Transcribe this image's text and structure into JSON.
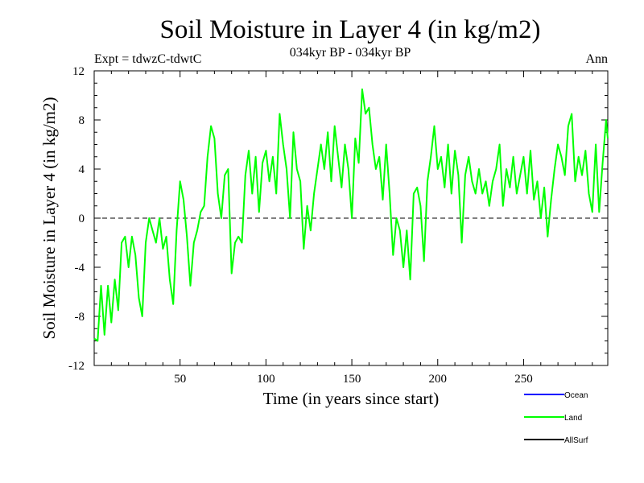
{
  "chart_data": {
    "type": "line",
    "title": "Soil Moisture in Layer 4 (in kg/m2)",
    "subtitle": "034kyr BP - 034kyr BP",
    "experiment": "Expt = tdwzC-tdwtC",
    "period": "Ann",
    "xlabel": "Time (in years since start)",
    "ylabel": "Soil Moisture in Layer 4 (in kg/m2)",
    "xlim": [
      0,
      299
    ],
    "ylim": [
      -12,
      12
    ],
    "xticks": [
      50,
      100,
      150,
      200,
      250
    ],
    "yticks": [
      -12,
      -8,
      -4,
      0,
      4,
      8,
      12
    ],
    "zero_line": "dashed",
    "legend_position": "bottom-right",
    "series": [
      {
        "name": "Land",
        "color": "#00ff00",
        "x": [
          0,
          2,
          4,
          6,
          8,
          10,
          12,
          14,
          16,
          18,
          20,
          22,
          24,
          26,
          28,
          30,
          32,
          34,
          36,
          38,
          40,
          42,
          44,
          46,
          48,
          50,
          52,
          54,
          56,
          58,
          60,
          62,
          64,
          66,
          68,
          70,
          72,
          74,
          76,
          78,
          80,
          82,
          84,
          86,
          88,
          90,
          92,
          94,
          96,
          98,
          100,
          102,
          104,
          106,
          108,
          110,
          112,
          114,
          116,
          118,
          120,
          122,
          124,
          126,
          128,
          130,
          132,
          134,
          136,
          138,
          140,
          142,
          144,
          146,
          148,
          150,
          152,
          154,
          156,
          158,
          160,
          162,
          164,
          166,
          168,
          170,
          172,
          174,
          176,
          178,
          180,
          182,
          184,
          186,
          188,
          190,
          192,
          194,
          196,
          198,
          200,
          202,
          204,
          206,
          208,
          210,
          212,
          214,
          216,
          218,
          220,
          222,
          224,
          226,
          228,
          230,
          232,
          234,
          236,
          238,
          240,
          242,
          244,
          246,
          248,
          250,
          252,
          254,
          256,
          258,
          260,
          262,
          264,
          266,
          268,
          270,
          272,
          274,
          276,
          278,
          280,
          282,
          284,
          286,
          288,
          290,
          292,
          294,
          296,
          298,
          299
        ],
        "values": [
          -9.8,
          -10.0,
          -5.5,
          -9.5,
          -5.5,
          -8.5,
          -5.0,
          -7.5,
          -2.0,
          -1.5,
          -4.0,
          -1.5,
          -3.0,
          -6.5,
          -8.0,
          -2.0,
          0.0,
          -1.0,
          -2.0,
          0.0,
          -2.5,
          -1.5,
          -5.0,
          -7.0,
          -1.0,
          3.0,
          1.5,
          -1.5,
          -5.5,
          -2.0,
          -1.0,
          0.5,
          1.0,
          5.0,
          7.5,
          6.5,
          2.0,
          0.0,
          3.5,
          4.0,
          -4.5,
          -2.0,
          -1.5,
          -2.0,
          3.5,
          5.5,
          2.0,
          5.0,
          0.5,
          4.5,
          5.5,
          3.0,
          5.0,
          2.0,
          8.5,
          6.0,
          4.0,
          0.0,
          7.0,
          4.0,
          3.0,
          -2.5,
          1.0,
          -1.0,
          2.0,
          4.0,
          6.0,
          4.0,
          7.0,
          3.0,
          7.5,
          5.0,
          2.5,
          6.0,
          4.0,
          0.0,
          6.5,
          4.5,
          10.5,
          8.5,
          9.0,
          6.0,
          4.0,
          5.0,
          1.5,
          6.0,
          2.0,
          -3.0,
          0.0,
          -1.0,
          -4.0,
          -1.0,
          -5.0,
          2.0,
          2.5,
          1.0,
          -3.5,
          3.0,
          5.0,
          7.5,
          4.0,
          5.0,
          2.5,
          6.0,
          2.0,
          5.5,
          3.5,
          -2.0,
          3.5,
          5.0,
          3.0,
          2.0,
          4.0,
          2.0,
          3.0,
          1.0,
          3.0,
          4.0,
          6.0,
          1.0,
          4.0,
          2.5,
          5.0,
          2.0,
          3.5,
          5.0,
          2.0,
          5.5,
          1.5,
          3.0,
          0.0,
          2.5,
          -1.5,
          1.5,
          4.0,
          6.0,
          5.0,
          3.5,
          7.5,
          8.5,
          3.0,
          5.0,
          3.5,
          5.5,
          2.0,
          0.5,
          6.0,
          0.5,
          4.5,
          8.0,
          6.5
        ]
      },
      {
        "name": "Ocean",
        "color": "#0000ff",
        "values": []
      },
      {
        "name": "AllSurf",
        "color": "#000000",
        "values": []
      }
    ]
  }
}
